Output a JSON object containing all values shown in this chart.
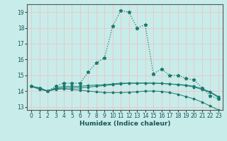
{
  "xlabel": "Humidex (Indice chaleur)",
  "ylabel": "",
  "bg_color": "#c8ecea",
  "plot_bg_color": "#c8ecea",
  "grid_color": "#e8c8c8",
  "line_color": "#1a7a6e",
  "xlim": [
    -0.5,
    23.5
  ],
  "ylim": [
    12.8,
    19.5
  ],
  "xticks": [
    0,
    1,
    2,
    3,
    4,
    5,
    6,
    7,
    8,
    9,
    10,
    11,
    12,
    13,
    14,
    15,
    16,
    17,
    18,
    19,
    20,
    21,
    22,
    23
  ],
  "yticks": [
    13,
    14,
    15,
    16,
    17,
    18,
    19
  ],
  "line1_x": [
    0,
    1,
    2,
    3,
    4,
    5,
    6,
    7,
    8,
    9,
    10,
    11,
    12,
    13,
    14,
    15,
    16,
    17,
    18,
    19,
    20,
    21,
    22,
    23
  ],
  "line1_y": [
    14.3,
    14.2,
    14.0,
    14.3,
    14.5,
    14.5,
    14.5,
    15.2,
    15.8,
    16.1,
    18.1,
    19.1,
    19.0,
    18.0,
    18.2,
    15.1,
    15.4,
    15.0,
    15.0,
    14.8,
    14.7,
    14.2,
    13.7,
    13.5
  ],
  "line2_x": [
    0,
    1,
    2,
    3,
    4,
    5,
    6,
    7,
    8,
    9,
    10,
    11,
    12,
    13,
    14,
    15,
    16,
    17,
    18,
    19,
    20,
    21,
    22,
    23
  ],
  "line2_y": [
    14.3,
    14.2,
    14.0,
    14.15,
    14.2,
    14.2,
    14.2,
    14.25,
    14.3,
    14.35,
    14.4,
    14.45,
    14.5,
    14.5,
    14.5,
    14.5,
    14.48,
    14.45,
    14.42,
    14.38,
    14.3,
    14.15,
    13.95,
    13.65
  ],
  "line3_x": [
    0,
    1,
    2,
    3,
    4,
    5,
    6,
    7,
    8,
    9,
    10,
    11,
    12,
    13,
    14,
    15,
    16,
    17,
    18,
    19,
    20,
    21,
    22,
    23
  ],
  "line3_y": [
    14.3,
    14.1,
    14.0,
    14.1,
    14.15,
    14.1,
    14.05,
    14.0,
    13.95,
    13.9,
    13.9,
    13.9,
    13.92,
    13.95,
    14.0,
    14.0,
    13.98,
    13.9,
    13.8,
    13.65,
    13.5,
    13.3,
    13.05,
    12.8
  ],
  "line4_x": [
    0,
    1,
    2,
    3,
    4,
    5,
    6,
    7,
    8,
    9,
    10,
    11,
    12,
    13,
    14,
    15,
    16,
    17,
    18,
    19,
    20,
    21,
    22,
    23
  ],
  "line4_y": [
    14.3,
    14.2,
    14.0,
    14.2,
    14.3,
    14.3,
    14.3,
    14.35,
    14.38,
    14.4,
    14.45,
    14.5,
    14.5,
    14.5,
    14.5,
    14.5,
    14.48,
    14.45,
    14.4,
    14.35,
    14.25,
    14.1,
    13.9,
    13.6
  ]
}
